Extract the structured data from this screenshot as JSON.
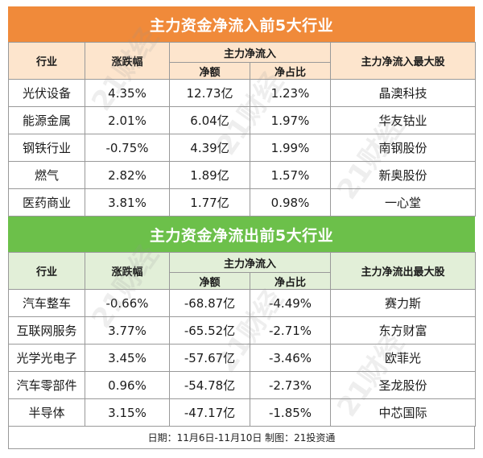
{
  "inflow": {
    "title": "主力资金净流入前5大行业",
    "headers": {
      "industry": "行业",
      "change": "涨跌幅",
      "main_flow": "主力净流入",
      "net_amount": "净额",
      "net_ratio": "净占比",
      "top_stock": "主力净流入最大股"
    },
    "rows": [
      {
        "industry": "光伏设备",
        "change": "4.35%",
        "net_amount": "12.73亿",
        "net_ratio": "1.23%",
        "top_stock": "晶澳科技"
      },
      {
        "industry": "能源金属",
        "change": "2.01%",
        "net_amount": "6.04亿",
        "net_ratio": "1.97%",
        "top_stock": "华友钴业"
      },
      {
        "industry": "钢铁行业",
        "change": "-0.75%",
        "net_amount": "4.39亿",
        "net_ratio": "1.99%",
        "top_stock": "南钢股份"
      },
      {
        "industry": "燃气",
        "change": "2.82%",
        "net_amount": "1.89亿",
        "net_ratio": "1.57%",
        "top_stock": "新奥股份"
      },
      {
        "industry": "医药商业",
        "change": "3.81%",
        "net_amount": "1.77亿",
        "net_ratio": "0.98%",
        "top_stock": "一心堂"
      }
    ]
  },
  "outflow": {
    "title": "主力资金净流出前5大行业",
    "headers": {
      "industry": "行业",
      "change": "涨跌幅",
      "main_flow": "主力净流入",
      "net_amount": "净额",
      "net_ratio": "净占比",
      "top_stock": "主力净流出最大股"
    },
    "rows": [
      {
        "industry": "汽车整车",
        "change": "-0.66%",
        "net_amount": "-68.87亿",
        "net_ratio": "-4.49%",
        "top_stock": "赛力斯"
      },
      {
        "industry": "互联网服务",
        "change": "3.77%",
        "net_amount": "-65.52亿",
        "net_ratio": "-2.71%",
        "top_stock": "东方财富"
      },
      {
        "industry": "光学光电子",
        "change": "3.45%",
        "net_amount": "-57.67亿",
        "net_ratio": "-3.46%",
        "top_stock": "欧菲光"
      },
      {
        "industry": "汽车零部件",
        "change": "0.96%",
        "net_amount": "-54.78亿",
        "net_ratio": "-2.73%",
        "top_stock": "圣龙股份"
      },
      {
        "industry": "半导体",
        "change": "3.15%",
        "net_amount": "-47.17亿",
        "net_ratio": "-1.85%",
        "top_stock": "中芯国际"
      }
    ]
  },
  "footer": "日期：11月6日-11月10日 制图：21投资通",
  "watermark": "21财经",
  "colors": {
    "inflow_banner": "#f08a3a",
    "inflow_header": "#fde5cd",
    "outflow_banner": "#6cc04a",
    "outflow_header": "#e2efd8"
  }
}
